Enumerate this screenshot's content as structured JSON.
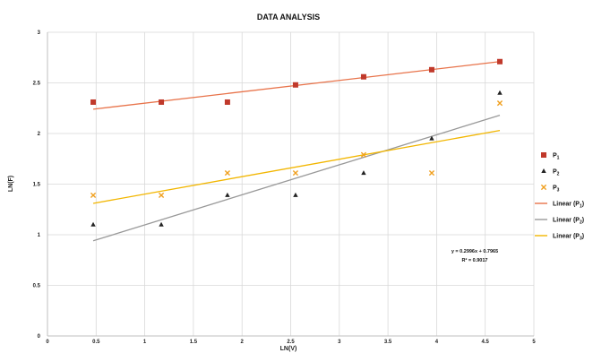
{
  "chart_data": {
    "type": "scatter",
    "title": "DATA ANALYSIS",
    "xlabel": "LN(V)",
    "ylabel": "LN(F)",
    "xlim": [
      0,
      5
    ],
    "ylim": [
      0,
      3
    ],
    "x_ticks": [
      "0",
      "0.5",
      "1",
      "1.5",
      "2",
      "2.5",
      "3",
      "3.5",
      "4",
      "4.5",
      "5"
    ],
    "y_ticks": [
      "0",
      "0.5",
      "1",
      "1.5",
      "2",
      "2.5",
      "3"
    ],
    "grid": true,
    "legend_position": "right",
    "series": [
      {
        "name": "P1",
        "marker": "square",
        "color": "#c0392b",
        "x": [
          0.47,
          1.17,
          1.85,
          2.55,
          3.25,
          3.95,
          4.65
        ],
        "y": [
          2.31,
          2.31,
          2.31,
          2.48,
          2.56,
          2.63,
          2.71
        ]
      },
      {
        "name": "P2",
        "marker": "triangle",
        "color": "#222222",
        "x": [
          0.47,
          1.17,
          1.85,
          2.55,
          3.25,
          3.95,
          4.65
        ],
        "y": [
          1.1,
          1.1,
          1.39,
          1.39,
          1.61,
          1.95,
          2.4
        ]
      },
      {
        "name": "P3",
        "marker": "x",
        "color": "#f0a020",
        "x": [
          0.47,
          1.17,
          1.85,
          2.55,
          3.25,
          3.95,
          4.65
        ],
        "y": [
          1.39,
          1.39,
          1.61,
          1.61,
          1.79,
          1.61,
          2.3
        ]
      }
    ],
    "trendlines": [
      {
        "name": "Linear (P1)",
        "color": "#e8734a",
        "x": [
          0.47,
          4.65
        ],
        "y": [
          2.24,
          2.71
        ]
      },
      {
        "name": "Linear (P2)",
        "color": "#999999",
        "x": [
          0.47,
          4.65
        ],
        "y": [
          0.94,
          2.18
        ]
      },
      {
        "name": "Linear (P3)",
        "color": "#f2b600",
        "x": [
          0.47,
          4.65
        ],
        "y": [
          1.31,
          2.03
        ]
      }
    ],
    "annotations": [
      "y = 0.2996x + 0.7965",
      "R² = 0.9017"
    ],
    "legend": [
      {
        "label": "P1",
        "sub": "1",
        "kind": "square",
        "color": "#c0392b"
      },
      {
        "label": "P2",
        "sub": "2",
        "kind": "triangle",
        "color": "#222222"
      },
      {
        "label": "P3",
        "sub": "3",
        "kind": "x",
        "color": "#f0a020"
      },
      {
        "label": "Linear (P1)",
        "sub": "1",
        "kind": "line",
        "color": "#e8734a"
      },
      {
        "label": "Linear (P2)",
        "sub": "2",
        "kind": "line",
        "color": "#999999"
      },
      {
        "label": "Linear (P3)",
        "sub": "3",
        "kind": "line",
        "color": "#f2b600"
      }
    ]
  }
}
